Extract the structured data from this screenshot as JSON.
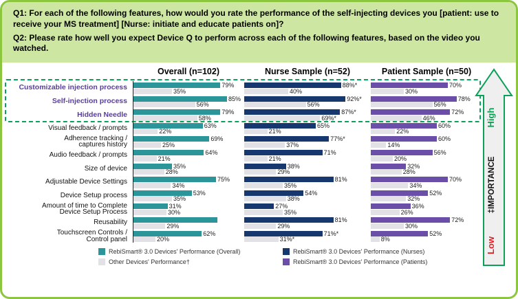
{
  "header": {
    "q1": "Q1: For each of the following features, how would you rate the performance of the self-injecting devices you [patient: use to receive your MS treatment] [Nurse: initiate and educate patients on]?",
    "q2": "Q2: Please rate how well you expect Device Q to perform across each of the following features, based on the video you watched."
  },
  "arrow": {
    "high": "High",
    "label": "‡IMPORTANCE",
    "low": "Low"
  },
  "colors": {
    "teal": "#2B9599",
    "navy": "#16386F",
    "purple": "#6B4EA8",
    "other_gray": "#E2E2E6",
    "header_bg": "#CDE6A2",
    "border_green": "#8CC63F",
    "dashed_green": "#0BA158",
    "high_green": "#00A651",
    "low_red": "#E31B23",
    "highlight_text": "#5A3CA0"
  },
  "legend": {
    "items": [
      {
        "color": "#2B9599",
        "text": "RebiSmart® 3.0 Devices' Performance (Overall)"
      },
      {
        "color": "#E2E2E6",
        "text": "Other Devices' Performance†"
      },
      {
        "color": "#16386F",
        "text": "RebiSmart® 3.0 Devices' Performance (Nurses)"
      },
      {
        "color": "#6B4EA8",
        "text": "RebiSmart® 3.0 Devices' Performance (Patients)"
      }
    ]
  },
  "chart_data": {
    "type": "bar",
    "orientation": "horizontal",
    "xlim": [
      0,
      100
    ],
    "grid": false,
    "legend_position": "bottom",
    "columns": [
      {
        "key": "overall",
        "label": "Overall (n=102)",
        "color": "#2B9599"
      },
      {
        "key": "nurse",
        "label": "Nurse Sample (n=52)",
        "color": "#16386F"
      },
      {
        "key": "patient",
        "label": "Patient Sample (n=50)",
        "color": "#6B4EA8"
      }
    ],
    "series_note": "Each row shows device performance (colored) over other devices' performance (gray) per sample column",
    "rows": [
      {
        "category": "Customizable injection process",
        "highlight": true,
        "overall": {
          "device": 79,
          "device_label": "79%",
          "other": 35,
          "other_label": "35%"
        },
        "nurse": {
          "device": 88,
          "device_label": "88%*",
          "other": 40,
          "other_label": "40%"
        },
        "patient": {
          "device": 70,
          "device_label": "70%",
          "other": 30,
          "other_label": "30%"
        }
      },
      {
        "category": "Self-injection process",
        "highlight": true,
        "overall": {
          "device": 85,
          "device_label": "85%",
          "other": 56,
          "other_label": "56%"
        },
        "nurse": {
          "device": 92,
          "device_label": "92%*",
          "other": 56,
          "other_label": "56%"
        },
        "patient": {
          "device": 78,
          "device_label": "78%",
          "other": 56,
          "other_label": "56%"
        }
      },
      {
        "category": "Hidden Needle",
        "highlight": true,
        "overall": {
          "device": 79,
          "device_label": "79%",
          "other": 58,
          "other_label": "58%"
        },
        "nurse": {
          "device": 87,
          "device_label": "87%*",
          "other": 69,
          "other_label": "69%*"
        },
        "patient": {
          "device": 72,
          "device_label": "72%",
          "other": 46,
          "other_label": "46%"
        }
      },
      {
        "category": "Visual feedback / prompts",
        "highlight": false,
        "overall": {
          "device": 63,
          "device_label": "63%",
          "other": 22,
          "other_label": "22%"
        },
        "nurse": {
          "device": 65,
          "device_label": "65%",
          "other": 21,
          "other_label": "21%"
        },
        "patient": {
          "device": 60,
          "device_label": "60%",
          "other": 22,
          "other_label": "22%"
        }
      },
      {
        "category": "Adherence tracking /\ncaptures history",
        "highlight": false,
        "overall": {
          "device": 69,
          "device_label": "69%",
          "other": 25,
          "other_label": "25%"
        },
        "nurse": {
          "device": 77,
          "device_label": "77%*",
          "other": 37,
          "other_label": "37%"
        },
        "patient": {
          "device": 60,
          "device_label": "60%",
          "other": 14,
          "other_label": "14%"
        }
      },
      {
        "category": "Audio feedback / prompts",
        "highlight": false,
        "overall": {
          "device": 64,
          "device_label": "64%",
          "other": 21,
          "other_label": "21%"
        },
        "nurse": {
          "device": 71,
          "device_label": "71%",
          "other": 21,
          "other_label": "21%"
        },
        "patient": {
          "device": 56,
          "device_label": "56%",
          "other": 20,
          "other_label": "20%"
        }
      },
      {
        "category": "Size of device",
        "highlight": false,
        "overall": {
          "device": 35,
          "device_label": "35%",
          "other": 28,
          "other_label": "28%"
        },
        "nurse": {
          "device": 38,
          "device_label": "38%",
          "other": 29,
          "other_label": "29%"
        },
        "patient": {
          "device": 32,
          "device_label": "32%",
          "other": 28,
          "other_label": "28%"
        }
      },
      {
        "category": "Adjustable Device Settings",
        "highlight": false,
        "overall": {
          "device": 75,
          "device_label": "75%",
          "other": 34,
          "other_label": "34%"
        },
        "nurse": {
          "device": 81,
          "device_label": "81%",
          "other": 35,
          "other_label": "35%"
        },
        "patient": {
          "device": 70,
          "device_label": "70%",
          "other": 34,
          "other_label": "34%"
        }
      },
      {
        "category": "Device Setup process",
        "highlight": false,
        "overall": {
          "device": 53,
          "device_label": "53%",
          "other": 35,
          "other_label": "35%"
        },
        "nurse": {
          "device": 54,
          "device_label": "54%",
          "other": 38,
          "other_label": "38%"
        },
        "patient": {
          "device": 52,
          "device_label": "52%",
          "other": 32,
          "other_label": "32%"
        }
      },
      {
        "category": "Amount of time to Complete\nDevice Setup Process",
        "highlight": false,
        "overall": {
          "device": 31,
          "device_label": "31%",
          "other": 30,
          "other_label": "30%"
        },
        "nurse": {
          "device": 27,
          "device_label": "27%",
          "other": 35,
          "other_label": "35%"
        },
        "patient": {
          "device": 36,
          "device_label": "36%",
          "other": 26,
          "other_label": "26%"
        }
      },
      {
        "category": "Reusability",
        "highlight": false,
        "overall": {
          "device": 76,
          "device_label": "",
          "other": 29,
          "other_label": "29%"
        },
        "nurse": {
          "device": 81,
          "device_label": "81%",
          "other": 29,
          "other_label": "29%"
        },
        "patient": {
          "device": 72,
          "device_label": "72%",
          "other": 30,
          "other_label": "30%"
        }
      },
      {
        "category": "Touchscreen Controls /\nControl panel",
        "highlight": false,
        "overall": {
          "device": 62,
          "device_label": "62%",
          "other": 20,
          "other_label": "20%"
        },
        "nurse": {
          "device": 71,
          "device_label": "71%*",
          "other": 31,
          "other_label": "31%*"
        },
        "patient": {
          "device": 52,
          "device_label": "52%",
          "other": 8,
          "other_label": "8%"
        }
      }
    ]
  }
}
